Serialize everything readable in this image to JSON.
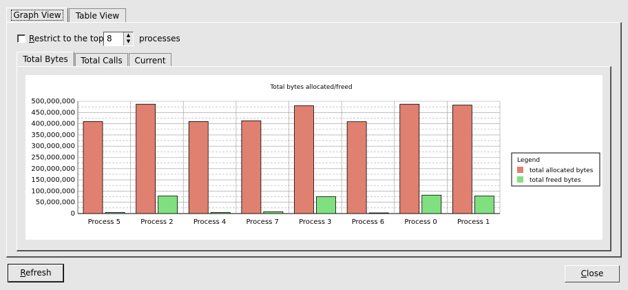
{
  "tabs": [
    {
      "label": "Graph View"
    },
    {
      "label": "Table View"
    }
  ],
  "restrict": {
    "label_prefix": "R",
    "label_rest": "estrict to the top",
    "checked": false,
    "value": "8",
    "suffix": "processes"
  },
  "sub_tabs": [
    {
      "label": "Total Bytes"
    },
    {
      "label": "Total Calls"
    },
    {
      "label": "Current"
    }
  ],
  "chart_data": {
    "type": "bar",
    "title": "Total bytes allocated/freed",
    "categories": [
      "Process 5",
      "Process 2",
      "Process 4",
      "Process 7",
      "Process 3",
      "Process 6",
      "Process 0",
      "Process 1"
    ],
    "series": [
      {
        "name": "total allocated bytes",
        "color": "#e08070",
        "values": [
          410000000,
          487000000,
          410000000,
          413000000,
          480000000,
          409000000,
          487000000,
          483000000
        ]
      },
      {
        "name": "total freed bytes",
        "color": "#80e080",
        "values": [
          5000000,
          78000000,
          5000000,
          8000000,
          75000000,
          3000000,
          82000000,
          78000000
        ]
      }
    ],
    "ylim": [
      0,
      500000000
    ],
    "yticks": [
      "500,000,000",
      "450,000,000",
      "400,000,000",
      "350,000,000",
      "300,000,000",
      "250,000,000",
      "200,000,000",
      "150,000,000",
      "100,000,000",
      "50,000,000",
      "0"
    ],
    "legend_title": "Legend",
    "legend_position": "right",
    "grid": true
  },
  "buttons": {
    "refresh_prefix": "R",
    "refresh_rest": "efresh",
    "close_prefix": "C",
    "close_rest": "lose"
  }
}
